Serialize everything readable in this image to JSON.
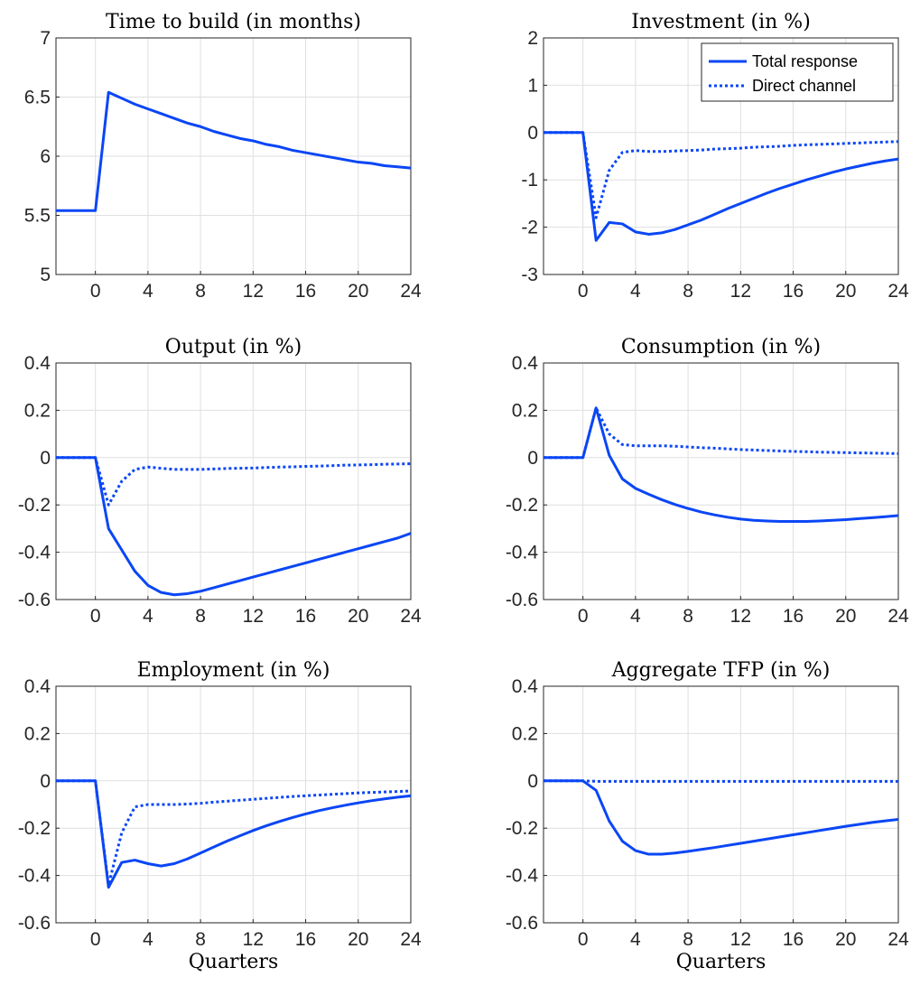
{
  "colors": {
    "line": "#0a46f5",
    "grid": "#dfdfdf",
    "axis": "#262626"
  },
  "legend": {
    "items": [
      "Total response",
      "Direct channel"
    ],
    "placement": "top-right",
    "panel": 1
  },
  "chart_data": [
    {
      "type": "line",
      "title": "Time to build (in months)",
      "xlabel": "",
      "ylim": [
        5,
        7
      ],
      "yticks": [
        5,
        5.5,
        6,
        6.5,
        7
      ],
      "ytick_labels": [
        "5",
        "5.5",
        "6",
        "6.5",
        "7"
      ],
      "xlim": [
        -3,
        24
      ],
      "xticks": [
        0,
        4,
        8,
        12,
        16,
        20,
        24
      ],
      "grid": true,
      "series": [
        {
          "name": "Total response",
          "style": "solid",
          "x": [
            -3,
            -2,
            -1,
            0,
            1,
            2,
            3,
            4,
            5,
            6,
            7,
            8,
            9,
            10,
            11,
            12,
            13,
            14,
            15,
            16,
            17,
            18,
            19,
            20,
            21,
            22,
            23,
            24
          ],
          "y": [
            5.54,
            5.54,
            5.54,
            5.54,
            6.54,
            6.49,
            6.44,
            6.4,
            6.36,
            6.32,
            6.28,
            6.25,
            6.21,
            6.18,
            6.15,
            6.13,
            6.1,
            6.08,
            6.05,
            6.03,
            6.01,
            5.99,
            5.97,
            5.95,
            5.94,
            5.92,
            5.91,
            5.9
          ]
        }
      ]
    },
    {
      "type": "line",
      "title": "Investment (in %)",
      "xlabel": "",
      "ylim": [
        -3,
        2
      ],
      "yticks": [
        -3,
        -2,
        -1,
        0,
        1,
        2
      ],
      "ytick_labels": [
        "-3",
        "-2",
        "-1",
        "0",
        "1",
        "2"
      ],
      "xlim": [
        -3,
        24
      ],
      "xticks": [
        0,
        4,
        8,
        12,
        16,
        20,
        24
      ],
      "grid": true,
      "series": [
        {
          "name": "Total response",
          "style": "solid",
          "x": [
            -3,
            -2,
            -1,
            0,
            1,
            2,
            3,
            4,
            5,
            6,
            7,
            8,
            9,
            10,
            11,
            12,
            13,
            14,
            15,
            16,
            17,
            18,
            19,
            20,
            21,
            22,
            23,
            24
          ],
          "y": [
            0,
            0,
            0,
            0,
            -2.28,
            -1.9,
            -1.93,
            -2.1,
            -2.15,
            -2.12,
            -2.05,
            -1.95,
            -1.85,
            -1.73,
            -1.61,
            -1.5,
            -1.39,
            -1.28,
            -1.18,
            -1.09,
            -1.0,
            -0.92,
            -0.84,
            -0.77,
            -0.71,
            -0.65,
            -0.6,
            -0.56
          ]
        },
        {
          "name": "Direct channel",
          "style": "dotted",
          "x": [
            -3,
            -2,
            -1,
            0,
            1,
            2,
            3,
            4,
            5,
            6,
            7,
            8,
            9,
            10,
            11,
            12,
            13,
            14,
            15,
            16,
            17,
            18,
            19,
            20,
            21,
            22,
            23,
            24
          ],
          "y": [
            0,
            0,
            0,
            0,
            -1.8,
            -0.8,
            -0.42,
            -0.38,
            -0.4,
            -0.4,
            -0.39,
            -0.38,
            -0.37,
            -0.35,
            -0.34,
            -0.33,
            -0.31,
            -0.3,
            -0.29,
            -0.27,
            -0.26,
            -0.25,
            -0.24,
            -0.23,
            -0.22,
            -0.21,
            -0.2,
            -0.19
          ]
        }
      ]
    },
    {
      "type": "line",
      "title": "Output (in %)",
      "xlabel": "",
      "ylim": [
        -0.6,
        0.4
      ],
      "yticks": [
        -0.6,
        -0.4,
        -0.2,
        0,
        0.2,
        0.4
      ],
      "ytick_labels": [
        "-0.6",
        "-0.4",
        "-0.2",
        "0",
        "0.2",
        "0.4"
      ],
      "xlim": [
        -3,
        24
      ],
      "xticks": [
        0,
        4,
        8,
        12,
        16,
        20,
        24
      ],
      "grid": true,
      "series": [
        {
          "name": "Total response",
          "style": "solid",
          "x": [
            -3,
            -2,
            -1,
            0,
            1,
            2,
            3,
            4,
            5,
            6,
            7,
            8,
            9,
            10,
            11,
            12,
            13,
            14,
            15,
            16,
            17,
            18,
            19,
            20,
            21,
            22,
            23,
            24
          ],
          "y": [
            0,
            0,
            0,
            0,
            -0.3,
            -0.39,
            -0.48,
            -0.54,
            -0.57,
            -0.58,
            -0.575,
            -0.565,
            -0.55,
            -0.535,
            -0.52,
            -0.505,
            -0.49,
            -0.475,
            -0.46,
            -0.445,
            -0.43,
            -0.415,
            -0.4,
            -0.385,
            -0.37,
            -0.355,
            -0.34,
            -0.32
          ]
        },
        {
          "name": "Direct channel",
          "style": "dotted",
          "x": [
            -3,
            -2,
            -1,
            0,
            1,
            2,
            3,
            4,
            5,
            6,
            7,
            8,
            9,
            10,
            11,
            12,
            13,
            14,
            15,
            16,
            17,
            18,
            19,
            20,
            21,
            22,
            23,
            24
          ],
          "y": [
            0,
            0,
            0,
            0,
            -0.2,
            -0.1,
            -0.05,
            -0.04,
            -0.045,
            -0.05,
            -0.05,
            -0.05,
            -0.048,
            -0.046,
            -0.045,
            -0.044,
            -0.042,
            -0.04,
            -0.039,
            -0.037,
            -0.036,
            -0.034,
            -0.032,
            -0.031,
            -0.03,
            -0.028,
            -0.027,
            -0.026
          ]
        }
      ]
    },
    {
      "type": "line",
      "title": "Consumption (in %)",
      "xlabel": "",
      "ylim": [
        -0.6,
        0.4
      ],
      "yticks": [
        -0.6,
        -0.4,
        -0.2,
        0,
        0.2,
        0.4
      ],
      "ytick_labels": [
        "-0.6",
        "-0.4",
        "-0.2",
        "0",
        "0.2",
        "0.4"
      ],
      "xlim": [
        -3,
        24
      ],
      "xticks": [
        0,
        4,
        8,
        12,
        16,
        20,
        24
      ],
      "grid": true,
      "series": [
        {
          "name": "Total response",
          "style": "solid",
          "x": [
            -3,
            -2,
            -1,
            0,
            1,
            2,
            3,
            4,
            5,
            6,
            7,
            8,
            9,
            10,
            11,
            12,
            13,
            14,
            15,
            16,
            17,
            18,
            19,
            20,
            21,
            22,
            23,
            24
          ],
          "y": [
            0,
            0,
            0,
            0,
            0.21,
            0.01,
            -0.09,
            -0.13,
            -0.155,
            -0.178,
            -0.198,
            -0.215,
            -0.23,
            -0.242,
            -0.252,
            -0.26,
            -0.265,
            -0.268,
            -0.27,
            -0.27,
            -0.27,
            -0.268,
            -0.265,
            -0.262,
            -0.258,
            -0.254,
            -0.25,
            -0.245
          ]
        },
        {
          "name": "Direct channel",
          "style": "dotted",
          "x": [
            -3,
            -2,
            -1,
            0,
            1,
            2,
            3,
            4,
            5,
            6,
            7,
            8,
            9,
            10,
            11,
            12,
            13,
            14,
            15,
            16,
            17,
            18,
            19,
            20,
            21,
            22,
            23,
            24
          ],
          "y": [
            0,
            0,
            0,
            0,
            0.21,
            0.1,
            0.055,
            0.05,
            0.05,
            0.05,
            0.048,
            0.045,
            0.042,
            0.04,
            0.037,
            0.034,
            0.032,
            0.03,
            0.028,
            0.026,
            0.025,
            0.023,
            0.022,
            0.021,
            0.02,
            0.019,
            0.018,
            0.017
          ]
        }
      ]
    },
    {
      "type": "line",
      "title": "Employment (in %)",
      "xlabel": "Quarters",
      "ylim": [
        -0.6,
        0.4
      ],
      "yticks": [
        -0.6,
        -0.4,
        -0.2,
        0,
        0.2,
        0.4
      ],
      "ytick_labels": [
        "-0.6",
        "-0.4",
        "-0.2",
        "0",
        "0.2",
        "0.4"
      ],
      "xlim": [
        -3,
        24
      ],
      "xticks": [
        0,
        4,
        8,
        12,
        16,
        20,
        24
      ],
      "grid": true,
      "series": [
        {
          "name": "Total response",
          "style": "solid",
          "x": [
            -3,
            -2,
            -1,
            0,
            1,
            2,
            3,
            4,
            5,
            6,
            7,
            8,
            9,
            10,
            11,
            12,
            13,
            14,
            15,
            16,
            17,
            18,
            19,
            20,
            21,
            22,
            23,
            24
          ],
          "y": [
            0,
            0,
            0,
            0,
            -0.45,
            -0.345,
            -0.335,
            -0.35,
            -0.36,
            -0.35,
            -0.33,
            -0.305,
            -0.28,
            -0.255,
            -0.232,
            -0.21,
            -0.19,
            -0.172,
            -0.155,
            -0.14,
            -0.126,
            -0.114,
            -0.103,
            -0.093,
            -0.084,
            -0.076,
            -0.069,
            -0.063
          ]
        },
        {
          "name": "Direct channel",
          "style": "dotted",
          "x": [
            -3,
            -2,
            -1,
            0,
            1,
            2,
            3,
            4,
            5,
            6,
            7,
            8,
            9,
            10,
            11,
            12,
            13,
            14,
            15,
            16,
            17,
            18,
            19,
            20,
            21,
            22,
            23,
            24
          ],
          "y": [
            0,
            0,
            0,
            0,
            -0.44,
            -0.22,
            -0.11,
            -0.1,
            -0.1,
            -0.1,
            -0.098,
            -0.095,
            -0.09,
            -0.086,
            -0.082,
            -0.078,
            -0.074,
            -0.07,
            -0.066,
            -0.063,
            -0.06,
            -0.057,
            -0.054,
            -0.051,
            -0.049,
            -0.047,
            -0.045,
            -0.043
          ]
        }
      ]
    },
    {
      "type": "line",
      "title": "Aggregate TFP (in %)",
      "xlabel": "Quarters",
      "ylim": [
        -0.6,
        0.4
      ],
      "yticks": [
        -0.6,
        -0.4,
        -0.2,
        0,
        0.2,
        0.4
      ],
      "ytick_labels": [
        "-0.6",
        "-0.4",
        "-0.2",
        "0",
        "0.2",
        "0.4"
      ],
      "xlim": [
        -3,
        24
      ],
      "xticks": [
        0,
        4,
        8,
        12,
        16,
        20,
        24
      ],
      "grid": true,
      "series": [
        {
          "name": "Total response",
          "style": "solid",
          "x": [
            -3,
            -2,
            -1,
            0,
            1,
            2,
            3,
            4,
            5,
            6,
            7,
            8,
            9,
            10,
            11,
            12,
            13,
            14,
            15,
            16,
            17,
            18,
            19,
            20,
            21,
            22,
            23,
            24
          ],
          "y": [
            0,
            0,
            0,
            0,
            -0.04,
            -0.17,
            -0.255,
            -0.295,
            -0.31,
            -0.31,
            -0.305,
            -0.298,
            -0.29,
            -0.282,
            -0.273,
            -0.264,
            -0.255,
            -0.246,
            -0.237,
            -0.228,
            -0.219,
            -0.21,
            -0.201,
            -0.192,
            -0.184,
            -0.176,
            -0.169,
            -0.163
          ]
        },
        {
          "name": "Direct channel",
          "style": "dotted",
          "x": [
            -3,
            -2,
            -1,
            0,
            1,
            2,
            3,
            4,
            5,
            6,
            7,
            8,
            9,
            10,
            11,
            12,
            13,
            14,
            15,
            16,
            17,
            18,
            19,
            20,
            21,
            22,
            23,
            24
          ],
          "y": [
            0,
            0,
            0,
            0,
            -0.002,
            -0.002,
            -0.002,
            -0.002,
            -0.002,
            -0.002,
            -0.002,
            -0.002,
            -0.002,
            -0.002,
            -0.002,
            -0.002,
            -0.002,
            -0.002,
            -0.002,
            -0.002,
            -0.002,
            -0.002,
            -0.002,
            -0.002,
            -0.002,
            -0.002,
            -0.002,
            -0.002
          ]
        }
      ]
    }
  ]
}
